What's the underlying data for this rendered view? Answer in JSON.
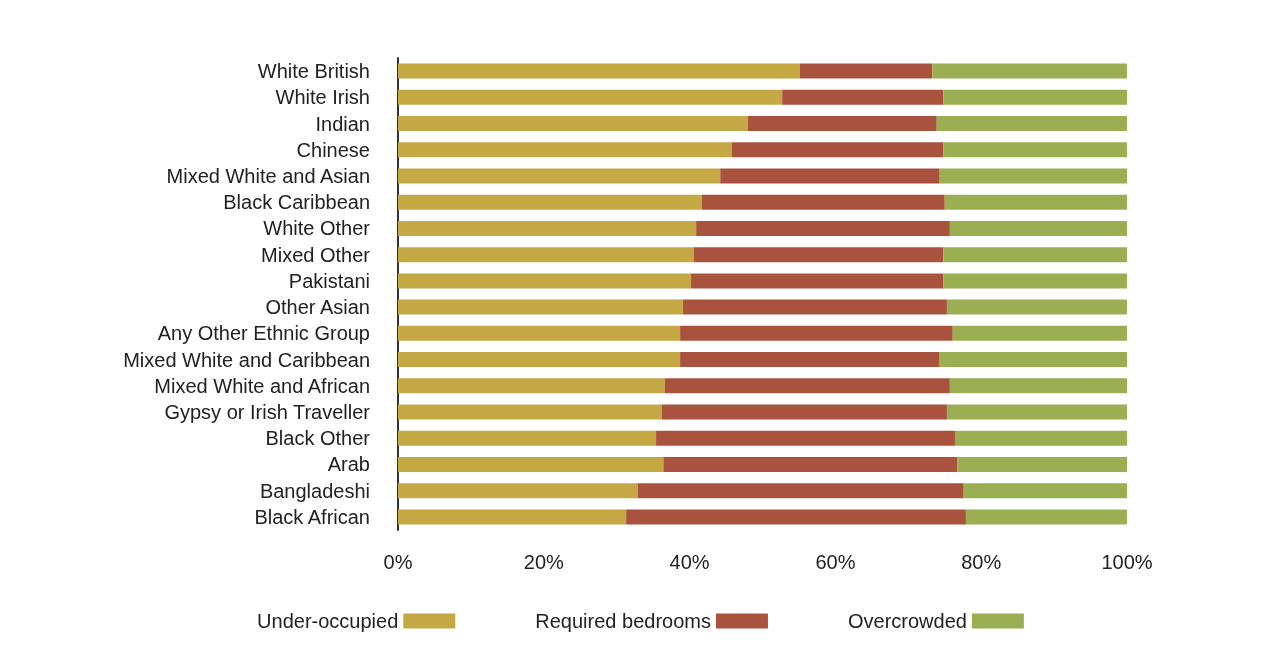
{
  "chart_data": {
    "type": "bar",
    "orientation": "horizontal",
    "stacked": true,
    "categories": [
      "White British",
      "White Irish",
      "Indian",
      "Chinese",
      "Mixed White and Asian",
      "Black Caribbean",
      "White Other",
      "Mixed Other",
      "Pakistani",
      "Other Asian",
      "Any Other Ethnic Group",
      "Mixed White and Caribbean",
      "Mixed White and African",
      "Gypsy or Irish Traveller",
      "Black Other",
      "Arab",
      "Bangladeshi",
      "Black African"
    ],
    "series": [
      {
        "name": "Under-occupied",
        "color": "#c4a844",
        "values": [
          55.1,
          52.7,
          48.0,
          45.8,
          44.2,
          41.7,
          40.9,
          40.6,
          40.2,
          39.1,
          38.7,
          38.7,
          36.6,
          36.2,
          35.4,
          36.4,
          32.9,
          31.3
        ]
      },
      {
        "name": "Required bedrooms",
        "color": "#a9533e",
        "values": [
          18.2,
          22.1,
          25.9,
          29.0,
          30.1,
          33.3,
          34.8,
          34.2,
          34.6,
          36.2,
          37.4,
          35.6,
          39.1,
          39.1,
          41.0,
          40.3,
          44.7,
          46.6
        ]
      },
      {
        "name": "Overcrowded",
        "color": "#9cae52",
        "values": [
          26.7,
          25.2,
          26.1,
          25.2,
          25.7,
          25.0,
          24.3,
          25.2,
          25.2,
          24.7,
          23.9,
          25.7,
          24.3,
          24.7,
          23.6,
          23.3,
          22.4,
          22.1
        ]
      }
    ],
    "xlim": [
      0,
      100
    ],
    "xticks": [
      {
        "value": 0,
        "label": "0%"
      },
      {
        "value": 20,
        "label": "20%"
      },
      {
        "value": 40,
        "label": "40%"
      },
      {
        "value": 60,
        "label": "60%"
      },
      {
        "value": 80,
        "label": "80%"
      },
      {
        "value": 100,
        "label": "100%"
      }
    ],
    "grid": false,
    "legend": "bottom"
  }
}
